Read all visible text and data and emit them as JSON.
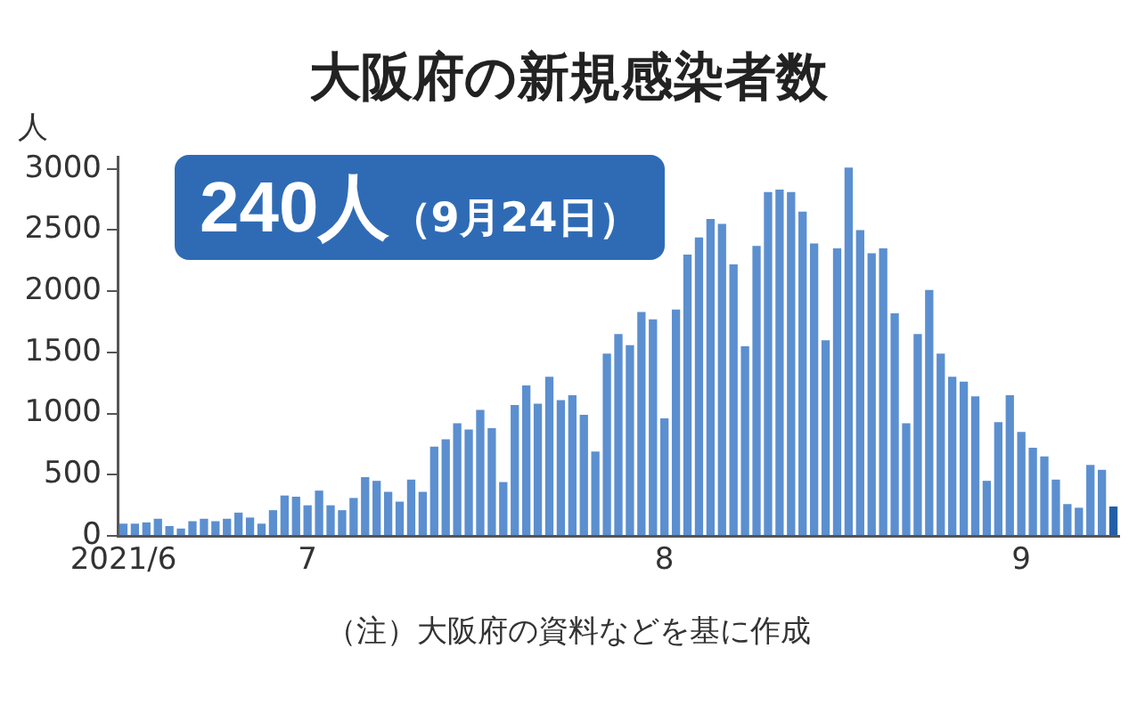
{
  "chart_data": {
    "type": "bar",
    "title": "大阪府の新規感染者数",
    "ylabel": "人",
    "annotations": [
      "240人（9月24日）",
      "（注）大阪府の資料などを基に作成"
    ],
    "categories": [
      "2021/6",
      null,
      null,
      null,
      null,
      null,
      null,
      null,
      null,
      null,
      null,
      null,
      null,
      null,
      null,
      null,
      "7",
      null,
      null,
      null,
      null,
      null,
      null,
      null,
      null,
      null,
      null,
      null,
      null,
      null,
      null,
      null,
      null,
      null,
      null,
      null,
      null,
      null,
      null,
      null,
      null,
      null,
      null,
      null,
      null,
      null,
      null,
      "8",
      null,
      null,
      null,
      null,
      null,
      null,
      null,
      null,
      null,
      null,
      null,
      null,
      null,
      null,
      null,
      null,
      null,
      null,
      null,
      null,
      null,
      null,
      null,
      null,
      null,
      null,
      null,
      null,
      null,
      null,
      "9",
      null,
      null,
      null,
      null,
      null,
      null,
      null,
      null
    ],
    "values": [
      100,
      100,
      110,
      140,
      80,
      60,
      120,
      140,
      120,
      140,
      190,
      150,
      100,
      210,
      330,
      320,
      250,
      370,
      250,
      210,
      310,
      480,
      450,
      360,
      280,
      460,
      360,
      730,
      790,
      920,
      870,
      1030,
      880,
      440,
      1070,
      1230,
      1080,
      1300,
      1110,
      1150,
      990,
      690,
      1490,
      1650,
      1560,
      1830,
      1770,
      960,
      1850,
      2300,
      2440,
      2590,
      2550,
      2220,
      1550,
      2370,
      2810,
      2830,
      2810,
      2650,
      2390,
      1600,
      2350,
      3010,
      2500,
      2310,
      2350,
      1820,
      920,
      1650,
      2010,
      1490,
      1300,
      1260,
      1140,
      450,
      930,
      1150,
      850,
      720,
      650,
      460,
      260,
      230,
      580,
      540,
      240
    ],
    "colors": [
      "#5b8fd0",
      "#5b8fd0",
      "#5b8fd0",
      "#5b8fd0",
      "#5b8fd0",
      "#5b8fd0",
      "#5b8fd0",
      "#5b8fd0",
      "#5b8fd0",
      "#5b8fd0",
      "#5b8fd0",
      "#5b8fd0",
      "#5b8fd0",
      "#5b8fd0",
      "#5b8fd0",
      "#5b8fd0",
      "#5b8fd0",
      "#5b8fd0",
      "#5b8fd0",
      "#5b8fd0",
      "#5b8fd0",
      "#5b8fd0",
      "#5b8fd0",
      "#5b8fd0",
      "#5b8fd0",
      "#5b8fd0",
      "#5b8fd0",
      "#5b8fd0",
      "#5b8fd0",
      "#5b8fd0",
      "#5b8fd0",
      "#5b8fd0",
      "#5b8fd0",
      "#5b8fd0",
      "#5b8fd0",
      "#5b8fd0",
      "#5b8fd0",
      "#5b8fd0",
      "#5b8fd0",
      "#5b8fd0",
      "#5b8fd0",
      "#5b8fd0",
      "#5b8fd0",
      "#5b8fd0",
      "#5b8fd0",
      "#5b8fd0",
      "#5b8fd0",
      "#5b8fd0",
      "#5b8fd0",
      "#5b8fd0",
      "#5b8fd0",
      "#5b8fd0",
      "#5b8fd0",
      "#5b8fd0",
      "#5b8fd0",
      "#5b8fd0",
      "#5b8fd0",
      "#5b8fd0",
      "#5b8fd0",
      "#5b8fd0",
      "#5b8fd0",
      "#5b8fd0",
      "#5b8fd0",
      "#5b8fd0",
      "#5b8fd0",
      "#5b8fd0",
      "#5b8fd0",
      "#5b8fd0",
      "#5b8fd0",
      "#5b8fd0",
      "#5b8fd0",
      "#5b8fd0",
      "#5b8fd0",
      "#5b8fd0",
      "#5b8fd0",
      "#5b8fd0",
      "#5b8fd0",
      "#5b8fd0",
      "#5b8fd0",
      "#5b8fd0",
      "#5b8fd0",
      "#5b8fd0",
      "#5b8fd0",
      "#5b8fd0",
      "#5b8fd0",
      "#5b8fd0",
      "#235fa8"
    ],
    "ylim": [
      0,
      3100
    ],
    "yticks": [
      0,
      500,
      1000,
      1500,
      2000,
      2500,
      3000
    ],
    "grid": false,
    "legend": false
  }
}
